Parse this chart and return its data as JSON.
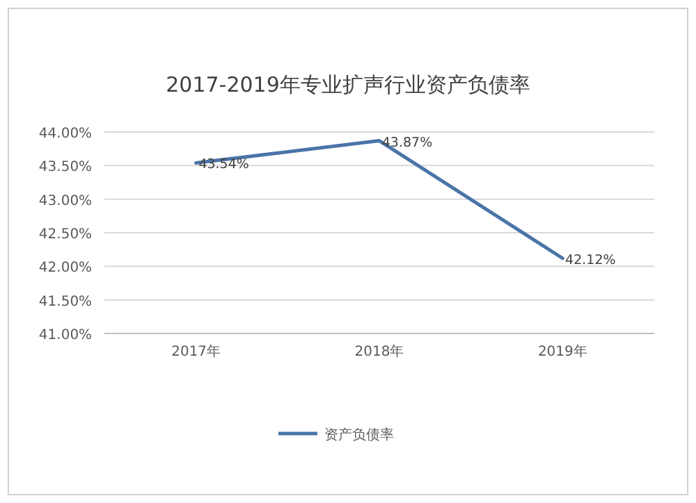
{
  "chart_data": {
    "type": "line",
    "title": "2017-2019年专业扩声行业资产负债率",
    "categories": [
      "2017年",
      "2018年",
      "2019年"
    ],
    "series": [
      {
        "name": "资产负债率",
        "color": "#4a74a8",
        "values": [
          43.54,
          43.87,
          42.12
        ],
        "value_labels": [
          "43.54%",
          "43.87%",
          "42.12%"
        ]
      }
    ],
    "ylim": [
      41,
      44
    ],
    "yticks": [
      {
        "value": 41,
        "label": "41.00%"
      },
      {
        "value": 41.5,
        "label": "41.50%"
      },
      {
        "value": 42,
        "label": "42.00%"
      },
      {
        "value": 42.5,
        "label": "42.50%"
      },
      {
        "value": 43,
        "label": "43.00%"
      },
      {
        "value": 43.5,
        "label": "43.50%"
      },
      {
        "value": 44,
        "label": "44.00%"
      }
    ],
    "grid": "y",
    "legend": "bottom",
    "marker": "none",
    "line_style": "solid"
  }
}
